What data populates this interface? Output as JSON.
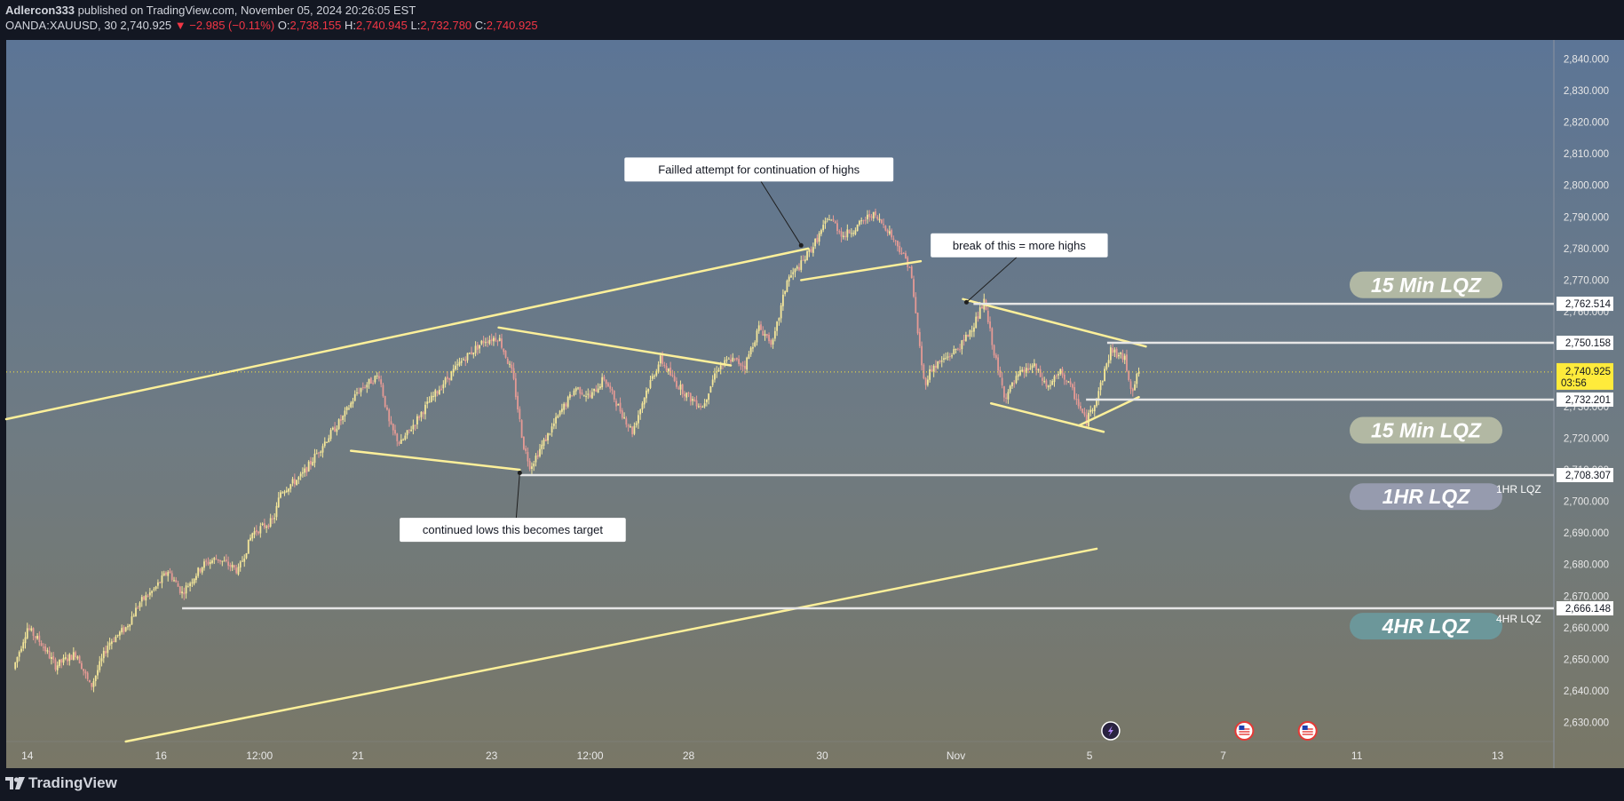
{
  "header": {
    "author": "Adlercon333",
    "published_text": "published on TradingView.com, November 05, 2024 20:26:05 EST",
    "symbol": "OANDA:XAUUSD, 30",
    "last": "2,740.925",
    "change": "−2.985 (−0.11%)",
    "o_label": "O:",
    "o_value": "2,738.155",
    "h_label": "H:",
    "h_value": "2,740.945",
    "l_label": "L:",
    "l_value": "2,732.780",
    "c_label": "C:",
    "c_value": "2,740.925"
  },
  "brand": "TradingView",
  "colors": {
    "up": "#f5e79a",
    "down": "#e59a95",
    "trendline": "#fdf09a",
    "level": "#e6e6e6",
    "price_tag": "#ffeb3b"
  },
  "chart_data": {
    "type": "candlestick",
    "symbol": "OANDA:XAUUSD",
    "timeframe": "30",
    "ylim": [
      2624,
      2846
    ],
    "y_ticks": [
      2630,
      2640,
      2650,
      2660,
      2670,
      2680,
      2690,
      2700,
      2710,
      2720,
      2730,
      2740,
      2750,
      2760,
      2770,
      2780,
      2790,
      2800,
      2810,
      2820,
      2830,
      2840
    ],
    "y_tick_labels": [
      "2,630.000",
      "2,640.000",
      "2,650.000",
      "2,660.000",
      "2,670.000",
      "2,680.000",
      "2,690.000",
      "2,700.000",
      "2,710.000",
      "2,720.000",
      "2,730.000",
      "2,740.000",
      "2,750.000",
      "2,760.000",
      "2,770.000",
      "2,780.000",
      "2,790.000",
      "2,800.000",
      "2,810.000",
      "2,820.000",
      "2,830.000",
      "2,840.000"
    ],
    "x_ticks": [
      {
        "label": "14",
        "t": 0.3
      },
      {
        "label": "16",
        "t": 2.2
      },
      {
        "label": "12:00",
        "t": 3.6
      },
      {
        "label": "21",
        "t": 5.0
      },
      {
        "label": "23",
        "t": 6.9
      },
      {
        "label": "12:00",
        "t": 8.3
      },
      {
        "label": "28",
        "t": 9.7
      },
      {
        "label": "30",
        "t": 11.6
      },
      {
        "label": "Nov",
        "t": 13.5
      },
      {
        "label": "5",
        "t": 15.4
      },
      {
        "label": "7",
        "t": 17.3
      },
      {
        "label": "11",
        "t": 19.2
      },
      {
        "label": "13",
        "t": 21.2
      }
    ],
    "xlim": [
      0,
      22
    ],
    "last_candle_t": 16.1,
    "price_path": [
      [
        0.1,
        2647
      ],
      [
        0.3,
        2660
      ],
      [
        0.5,
        2655
      ],
      [
        0.7,
        2648
      ],
      [
        1.0,
        2652
      ],
      [
        1.2,
        2641
      ],
      [
        1.45,
        2655
      ],
      [
        1.7,
        2660
      ],
      [
        1.9,
        2668
      ],
      [
        2.1,
        2672
      ],
      [
        2.3,
        2678
      ],
      [
        2.5,
        2671
      ],
      [
        2.8,
        2680
      ],
      [
        3.0,
        2682
      ],
      [
        3.3,
        2678
      ],
      [
        3.5,
        2690
      ],
      [
        3.8,
        2694
      ],
      [
        3.9,
        2703
      ],
      [
        4.2,
        2708
      ],
      [
        4.5,
        2718
      ],
      [
        4.8,
        2727
      ],
      [
        5.0,
        2735
      ],
      [
        5.3,
        2740
      ],
      [
        5.45,
        2724
      ],
      [
        5.6,
        2718
      ],
      [
        5.9,
        2728
      ],
      [
        6.2,
        2737
      ],
      [
        6.5,
        2745
      ],
      [
        6.8,
        2751
      ],
      [
        7.0,
        2752
      ],
      [
        7.2,
        2740
      ],
      [
        7.35,
        2718
      ],
      [
        7.45,
        2711
      ],
      [
        7.7,
        2721
      ],
      [
        7.9,
        2729
      ],
      [
        8.1,
        2736
      ],
      [
        8.3,
        2733
      ],
      [
        8.5,
        2739
      ],
      [
        8.7,
        2730
      ],
      [
        8.9,
        2722
      ],
      [
        9.1,
        2735
      ],
      [
        9.3,
        2745
      ],
      [
        9.5,
        2738
      ],
      [
        9.7,
        2733
      ],
      [
        9.9,
        2730
      ],
      [
        10.1,
        2742
      ],
      [
        10.3,
        2745
      ],
      [
        10.5,
        2743
      ],
      [
        10.7,
        2755
      ],
      [
        10.9,
        2750
      ],
      [
        11.1,
        2770
      ],
      [
        11.3,
        2775
      ],
      [
        11.5,
        2782
      ],
      [
        11.7,
        2790
      ],
      [
        11.9,
        2784
      ],
      [
        12.1,
        2787
      ],
      [
        12.3,
        2791
      ],
      [
        12.5,
        2787
      ],
      [
        12.7,
        2780
      ],
      [
        12.85,
        2774
      ],
      [
        12.95,
        2755
      ],
      [
        13.05,
        2737
      ],
      [
        13.15,
        2742
      ],
      [
        13.4,
        2746
      ],
      [
        13.6,
        2750
      ],
      [
        13.8,
        2758
      ],
      [
        13.9,
        2763
      ],
      [
        14.0,
        2752
      ],
      [
        14.1,
        2741
      ],
      [
        14.2,
        2733
      ],
      [
        14.4,
        2740
      ],
      [
        14.6,
        2743
      ],
      [
        14.8,
        2736
      ],
      [
        15.0,
        2741
      ],
      [
        15.2,
        2733
      ],
      [
        15.35,
        2725
      ],
      [
        15.5,
        2733
      ],
      [
        15.6,
        2740
      ],
      [
        15.7,
        2748
      ],
      [
        15.9,
        2745
      ],
      [
        16.0,
        2735
      ],
      [
        16.1,
        2740.925
      ]
    ],
    "trendlines": [
      {
        "t1": 0.0,
        "p1": 2726,
        "t2": 11.4,
        "p2": 2780
      },
      {
        "t1": 1.7,
        "p1": 2624,
        "t2": 15.5,
        "p2": 2685
      },
      {
        "t1": 4.9,
        "p1": 2716,
        "t2": 7.3,
        "p2": 2710
      },
      {
        "t1": 7.0,
        "p1": 2755,
        "t2": 10.3,
        "p2": 2743
      },
      {
        "t1": 11.3,
        "p1": 2770,
        "t2": 13.0,
        "p2": 2776
      },
      {
        "t1": 13.6,
        "p1": 2764,
        "t2": 16.2,
        "p2": 2749
      },
      {
        "t1": 14.0,
        "p1": 2731,
        "t2": 15.6,
        "p2": 2722
      },
      {
        "t1": 15.25,
        "p1": 2724,
        "t2": 16.1,
        "p2": 2733
      }
    ],
    "levels": [
      {
        "price": 2762.514,
        "label": "2,762.514",
        "t1": 13.75
      },
      {
        "price": 2750.158,
        "label": "2,750.158",
        "t1": 15.65
      },
      {
        "price": 2732.201,
        "label": "2,732.201",
        "t1": 15.35
      },
      {
        "price": 2708.307,
        "label": "2,708.307",
        "t1": 7.3
      },
      {
        "price": 2666.148,
        "label": "2,666.148",
        "t1": 2.5
      }
    ],
    "current_price": {
      "label": "2,740.925",
      "countdown": "03:56",
      "price": 2740.925
    },
    "annotations": [
      {
        "text": "Failled attempt for continuation of highs",
        "box_t": 10.7,
        "box_p": 2805,
        "anchor_t": 11.3,
        "anchor_p": 2781
      },
      {
        "text": "break of this = more highs",
        "box_t": 14.4,
        "box_p": 2781,
        "anchor_t": 13.65,
        "anchor_p": 2763
      },
      {
        "text": "continued lows this becomes target",
        "box_t": 7.2,
        "box_p": 2691,
        "anchor_t": 7.3,
        "anchor_p": 2709
      }
    ],
    "zone_labels": [
      {
        "text": "15 Min LQZ",
        "price": 2768.5,
        "tone": "light",
        "side_label": ""
      },
      {
        "text": "15 Min LQZ",
        "price": 2722.5,
        "tone": "light",
        "side_label": ""
      },
      {
        "text": "1HR  LQZ",
        "price": 2701.5,
        "tone": "purple",
        "side_label": "1HR LQZ"
      },
      {
        "text": "4HR  LQZ",
        "price": 2660.5,
        "tone": "teal",
        "side_label": "4HR LQZ"
      }
    ],
    "event_markers": [
      {
        "type": "lightning",
        "t": 15.7
      },
      {
        "type": "us-flag",
        "t": 17.6
      },
      {
        "type": "us-flag",
        "t": 18.5
      }
    ]
  }
}
